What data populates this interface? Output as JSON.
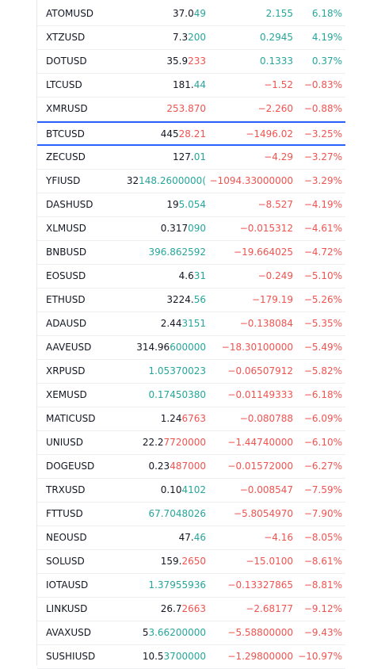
{
  "colors": {
    "up": "#26a69a",
    "down": "#ef5350",
    "selected_border": "#2962ff"
  },
  "watchlist": {
    "rows": [
      {
        "symbol": "ATOMUSD",
        "last_head": "37.0",
        "last_tail": "49",
        "last_tone": "up",
        "last_head_tone": "",
        "change": "2.155",
        "pct": "6.18%",
        "dir": "up"
      },
      {
        "symbol": "XTZUSD",
        "last_head": "7.3",
        "last_tail": "200",
        "last_tone": "up",
        "last_head_tone": "",
        "change": "0.2945",
        "pct": "4.19%",
        "dir": "up"
      },
      {
        "symbol": "DOTUSD",
        "last_head": "35.9",
        "last_tail": "233",
        "last_tone": "down",
        "last_head_tone": "",
        "change": "0.1333",
        "pct": "0.37%",
        "dir": "up"
      },
      {
        "symbol": "LTCUSD",
        "last_head": "181.",
        "last_tail": "44",
        "last_tone": "up",
        "last_head_tone": "",
        "change": "−1.52",
        "pct": "−0.83%",
        "dir": "down"
      },
      {
        "symbol": "XMRUSD",
        "last_head": "253.870",
        "last_tail": "",
        "last_tone": "down",
        "last_head_tone": "down",
        "change": "−2.260",
        "pct": "−0.88%",
        "dir": "down"
      },
      {
        "symbol": "BTCUSD",
        "last_head": "445",
        "last_tail": "28.21",
        "last_tone": "down",
        "last_head_tone": "",
        "change": "−1496.02",
        "pct": "−3.25%",
        "dir": "down",
        "selected": true
      },
      {
        "symbol": "ZECUSD",
        "last_head": "127.",
        "last_tail": "01",
        "last_tone": "up",
        "last_head_tone": "",
        "change": "−4.29",
        "pct": "−3.27%",
        "dir": "down"
      },
      {
        "symbol": "YFIUSD",
        "last_head": "32",
        "last_tail": "148.2600000(",
        "last_tone": "up",
        "last_head_tone": "",
        "change": "−1094.33000000",
        "pct": "−3.29%",
        "dir": "down"
      },
      {
        "symbol": "DASHUSD",
        "last_head": "19",
        "last_tail": "5.054",
        "last_tone": "up",
        "last_head_tone": "",
        "change": "−8.527",
        "pct": "−4.19%",
        "dir": "down"
      },
      {
        "symbol": "XLMUSD",
        "last_head": "0.317",
        "last_tail": "090",
        "last_tone": "up",
        "last_head_tone": "",
        "change": "−0.015312",
        "pct": "−4.61%",
        "dir": "down"
      },
      {
        "symbol": "BNBUSD",
        "last_head": "396.862592",
        "last_tail": "",
        "last_tone": "up",
        "last_head_tone": "up",
        "change": "−19.664025",
        "pct": "−4.72%",
        "dir": "down"
      },
      {
        "symbol": "EOSUSD",
        "last_head": "4.6",
        "last_tail": "31",
        "last_tone": "up",
        "last_head_tone": "",
        "change": "−0.249",
        "pct": "−5.10%",
        "dir": "down"
      },
      {
        "symbol": "ETHUSD",
        "last_head": "3224.",
        "last_tail": "56",
        "last_tone": "up",
        "last_head_tone": "",
        "change": "−179.19",
        "pct": "−5.26%",
        "dir": "down"
      },
      {
        "symbol": "ADAUSD",
        "last_head": "2.44",
        "last_tail": "3151",
        "last_tone": "up",
        "last_head_tone": "",
        "change": "−0.138084",
        "pct": "−5.35%",
        "dir": "down"
      },
      {
        "symbol": "AAVEUSD",
        "last_head": "314.96",
        "last_tail": "600000",
        "last_tone": "up",
        "last_head_tone": "",
        "change": "−18.30100000",
        "pct": "−5.49%",
        "dir": "down"
      },
      {
        "symbol": "XRPUSD",
        "last_head": "1.05370023",
        "last_tail": "",
        "last_tone": "up",
        "last_head_tone": "up",
        "change": "−0.06507912",
        "pct": "−5.82%",
        "dir": "down"
      },
      {
        "symbol": "XEMUSD",
        "last_head": "0.17450380",
        "last_tail": "",
        "last_tone": "up",
        "last_head_tone": "up",
        "change": "−0.01149333",
        "pct": "−6.18%",
        "dir": "down"
      },
      {
        "symbol": "MATICUSD",
        "last_head": "1.24",
        "last_tail": "6763",
        "last_tone": "down",
        "last_head_tone": "",
        "change": "−0.080788",
        "pct": "−6.09%",
        "dir": "down"
      },
      {
        "symbol": "UNIUSD",
        "last_head": "22.2",
        "last_tail": "7720000",
        "last_tone": "down",
        "last_head_tone": "",
        "change": "−1.44740000",
        "pct": "−6.10%",
        "dir": "down"
      },
      {
        "symbol": "DOGEUSD",
        "last_head": "0.23",
        "last_tail": "487000",
        "last_tone": "down",
        "last_head_tone": "",
        "change": "−0.01572000",
        "pct": "−6.27%",
        "dir": "down"
      },
      {
        "symbol": "TRXUSD",
        "last_head": "0.10",
        "last_tail": "4102",
        "last_tone": "up",
        "last_head_tone": "",
        "change": "−0.008547",
        "pct": "−7.59%",
        "dir": "down"
      },
      {
        "symbol": "FTTUSD",
        "last_head": "67.7048026",
        "last_tail": "",
        "last_tone": "up",
        "last_head_tone": "up",
        "change": "−5.8054970",
        "pct": "−7.90%",
        "dir": "down"
      },
      {
        "symbol": "NEOUSD",
        "last_head": "47.",
        "last_tail": "46",
        "last_tone": "up",
        "last_head_tone": "",
        "change": "−4.16",
        "pct": "−8.05%",
        "dir": "down"
      },
      {
        "symbol": "SOLUSD",
        "last_head": "159.",
        "last_tail": "2650",
        "last_tone": "down",
        "last_head_tone": "",
        "change": "−15.0100",
        "pct": "−8.61%",
        "dir": "down"
      },
      {
        "symbol": "IOTAUSD",
        "last_head": "1.37955936",
        "last_tail": "",
        "last_tone": "up",
        "last_head_tone": "up",
        "change": "−0.13327865",
        "pct": "−8.81%",
        "dir": "down"
      },
      {
        "symbol": "LINKUSD",
        "last_head": "26.7",
        "last_tail": "2663",
        "last_tone": "down",
        "last_head_tone": "",
        "change": "−2.68177",
        "pct": "−9.12%",
        "dir": "down"
      },
      {
        "symbol": "AVAXUSD",
        "last_head": "5",
        "last_tail": "3.66200000",
        "last_tone": "up",
        "last_head_tone": "",
        "change": "−5.58800000",
        "pct": "−9.43%",
        "dir": "down"
      },
      {
        "symbol": "SUSHIUSD",
        "last_head": "10.5",
        "last_tail": "3700000",
        "last_tone": "up",
        "last_head_tone": "",
        "change": "−1.29800000",
        "pct": "−10.97%",
        "dir": "down"
      }
    ]
  }
}
